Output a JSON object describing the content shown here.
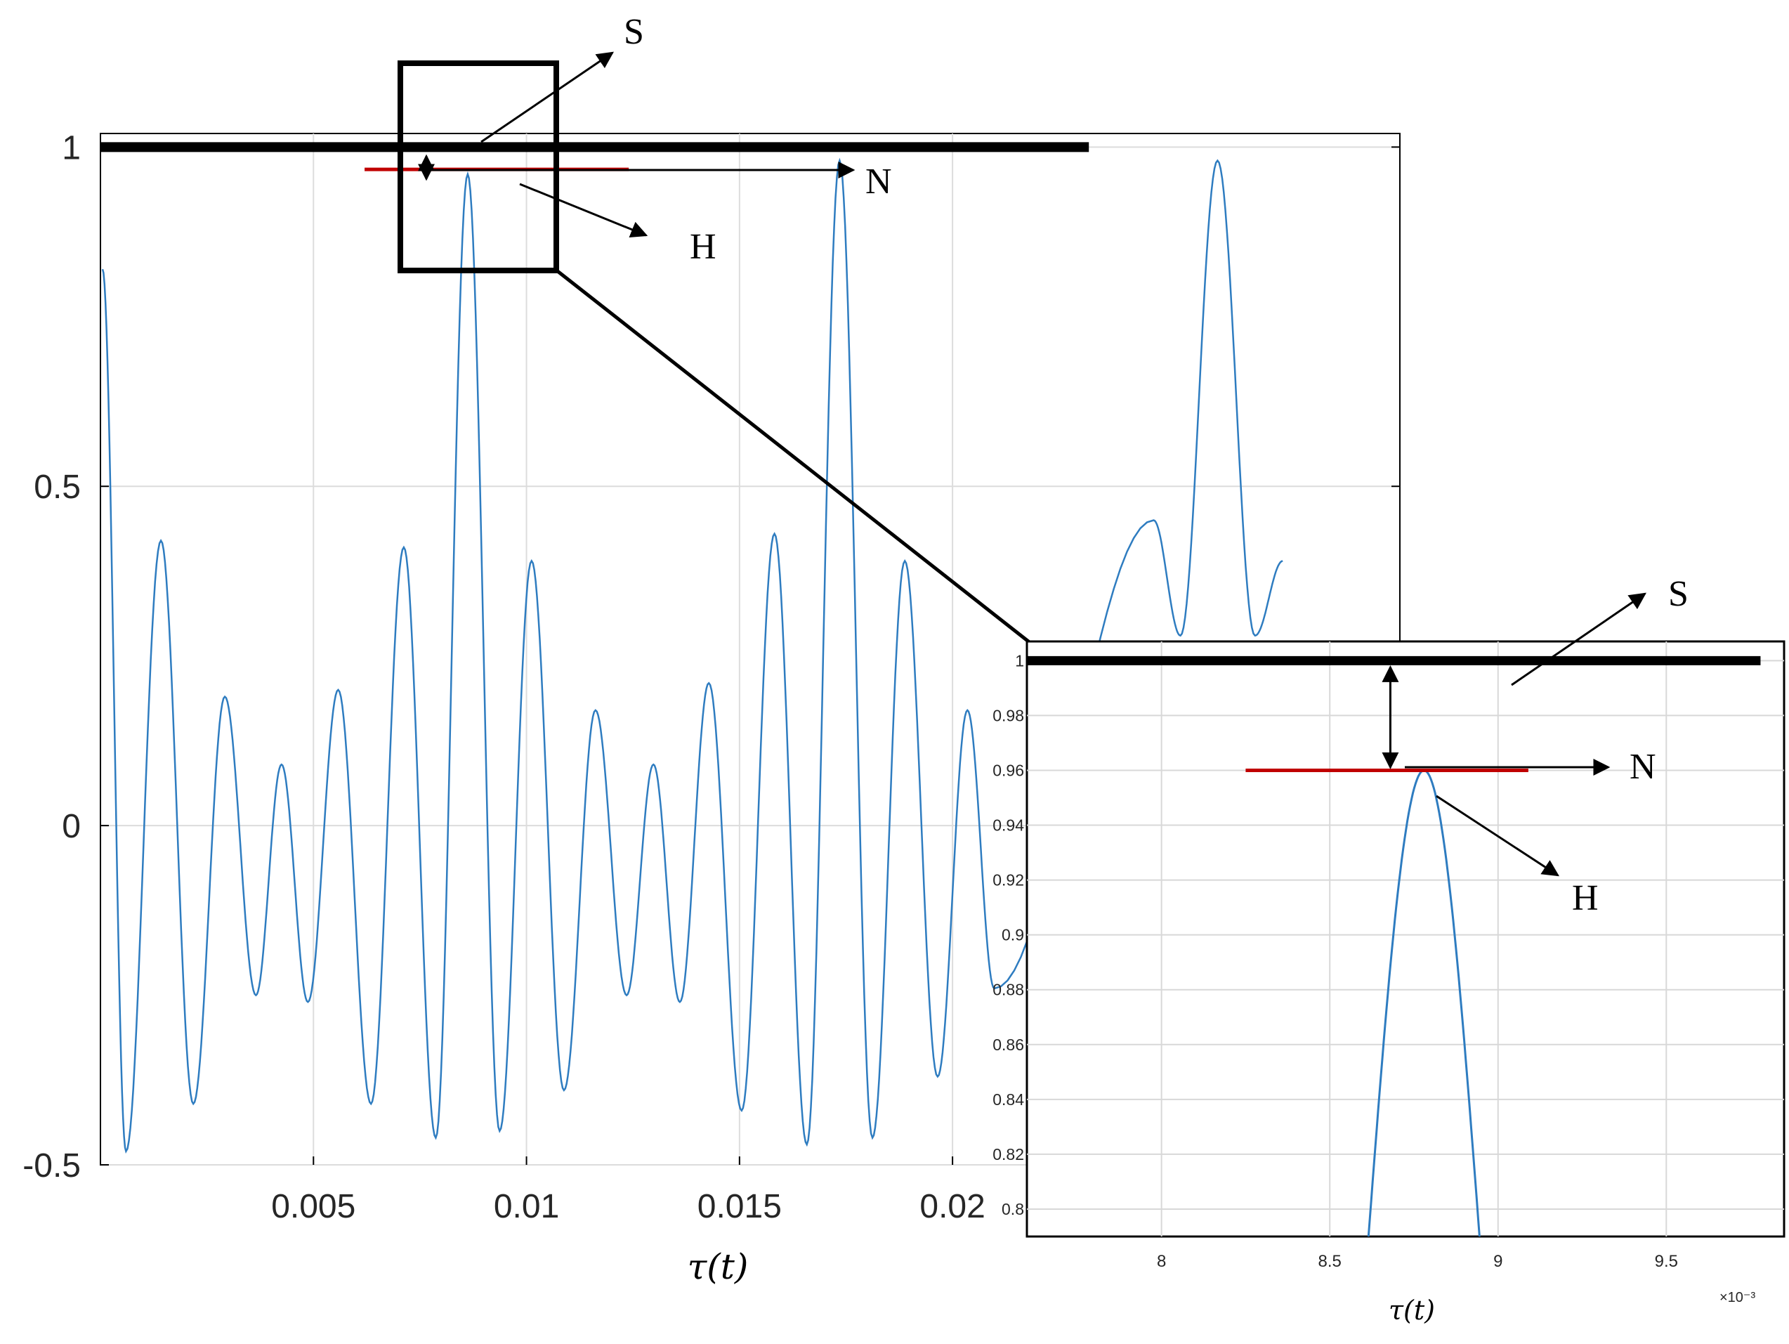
{
  "chart_data": [
    {
      "type": "line",
      "title": "",
      "xlabel": "τ(t)",
      "ylabel": "",
      "xlim": [
        0,
        0.0305
      ],
      "ylim": [
        -0.5,
        1.02
      ],
      "xticks": [
        {
          "value": 0.005,
          "label": "0.005"
        },
        {
          "value": 0.01,
          "label": "0.01"
        },
        {
          "value": 0.015,
          "label": "0.015"
        },
        {
          "value": 0.02,
          "label": "0.02"
        }
      ],
      "yticks": [
        {
          "value": -0.5,
          "label": "-0.5"
        },
        {
          "value": 0,
          "label": "0"
        },
        {
          "value": 0.5,
          "label": "0.5"
        },
        {
          "value": 1,
          "label": "1"
        }
      ],
      "grid": true,
      "series_color": "#2e7cc0",
      "series": [
        {
          "peaks": [
            {
              "x": 5e-05,
              "y": 0.82
            },
            {
              "x": 0.0006,
              "y": -0.48
            },
            {
              "x": 0.00142,
              "y": 0.42
            },
            {
              "x": 0.00218,
              "y": -0.41
            },
            {
              "x": 0.00292,
              "y": 0.19
            },
            {
              "x": 0.00365,
              "y": -0.25
            },
            {
              "x": 0.00425,
              "y": 0.09
            },
            {
              "x": 0.00487,
              "y": -0.26
            },
            {
              "x": 0.00558,
              "y": 0.2
            },
            {
              "x": 0.00635,
              "y": -0.41
            },
            {
              "x": 0.00712,
              "y": 0.41
            },
            {
              "x": 0.00787,
              "y": -0.46
            },
            {
              "x": 0.00862,
              "y": 0.96
            },
            {
              "x": 0.00937,
              "y": -0.45
            },
            {
              "x": 0.01012,
              "y": 0.39
            },
            {
              "x": 0.01088,
              "y": -0.39
            },
            {
              "x": 0.01162,
              "y": 0.17
            },
            {
              "x": 0.01235,
              "y": -0.25
            },
            {
              "x": 0.01298,
              "y": 0.09
            },
            {
              "x": 0.0136,
              "y": -0.26
            },
            {
              "x": 0.01428,
              "y": 0.21
            },
            {
              "x": 0.01505,
              "y": -0.42
            },
            {
              "x": 0.01582,
              "y": 0.43
            },
            {
              "x": 0.01658,
              "y": -0.47
            },
            {
              "x": 0.01735,
              "y": 0.98
            },
            {
              "x": 0.01812,
              "y": -0.46
            },
            {
              "x": 0.01888,
              "y": 0.39
            },
            {
              "x": 0.01965,
              "y": -0.37
            },
            {
              "x": 0.02035,
              "y": 0.17
            },
            {
              "x": 0.02098,
              "y": -0.24
            },
            {
              "x": 0.02472,
              "y": 0.45
            },
            {
              "x": 0.02535,
              "y": 0.28
            },
            {
              "x": 0.02622,
              "y": 0.98
            },
            {
              "x": 0.0271,
              "y": 0.28
            },
            {
              "x": 0.02775,
              "y": 0.39
            }
          ]
        }
      ],
      "reference_lines": [
        {
          "label": "S",
          "y": 1.0,
          "x_start": 0.0,
          "x_end": 0.0232,
          "color": "#000000"
        },
        {
          "label": "H",
          "y": 0.967,
          "x_start": 0.0062,
          "x_end": 0.0124,
          "color": "#c00000"
        }
      ],
      "zoom_box": {
        "x_range": [
          0.0069,
          0.0106
        ],
        "y_range": [
          0.83,
          1.1
        ]
      },
      "annotations": [
        "S",
        "N",
        "H"
      ]
    },
    {
      "type": "line",
      "title": "",
      "xlabel": "τ(t)",
      "ylabel": "",
      "x_multiplier": "×10⁻³",
      "xlim": [
        7.6,
        9.85
      ],
      "ylim": [
        0.79,
        1.007
      ],
      "xticks": [
        {
          "value": 8,
          "label": "8"
        },
        {
          "value": 8.5,
          "label": "8.5"
        },
        {
          "value": 9,
          "label": "9"
        },
        {
          "value": 9.5,
          "label": "9.5"
        }
      ],
      "yticks": [
        {
          "value": 0.8,
          "label": "0.8"
        },
        {
          "value": 0.82,
          "label": "0.82"
        },
        {
          "value": 0.84,
          "label": "0.84"
        },
        {
          "value": 0.86,
          "label": "0.86"
        },
        {
          "value": 0.88,
          "label": "0.88"
        },
        {
          "value": 0.9,
          "label": "0.9"
        },
        {
          "value": 0.92,
          "label": "0.92"
        },
        {
          "value": 0.94,
          "label": "0.94"
        },
        {
          "value": 0.96,
          "label": "0.96"
        },
        {
          "value": 0.98,
          "label": "0.98"
        },
        {
          "value": 1,
          "label": "1"
        }
      ],
      "grid": true,
      "series": [
        {
          "peak": {
            "x": 8.78,
            "y": 0.96
          },
          "half_width": 0.165,
          "range_y": [
            0.79,
            0.96
          ]
        }
      ],
      "reference_lines": [
        {
          "label": "S",
          "y": 1.0,
          "x_start": 7.6,
          "x_end": 9.78,
          "color": "#000000"
        },
        {
          "label": "H",
          "y": 0.96,
          "x_start": 8.25,
          "x_end": 9.09,
          "color": "#c00000"
        }
      ],
      "gap_marker": {
        "x": 8.68,
        "y_from": 0.96,
        "y_to": 1.0
      },
      "annotations": [
        "S",
        "N",
        "H"
      ]
    }
  ]
}
